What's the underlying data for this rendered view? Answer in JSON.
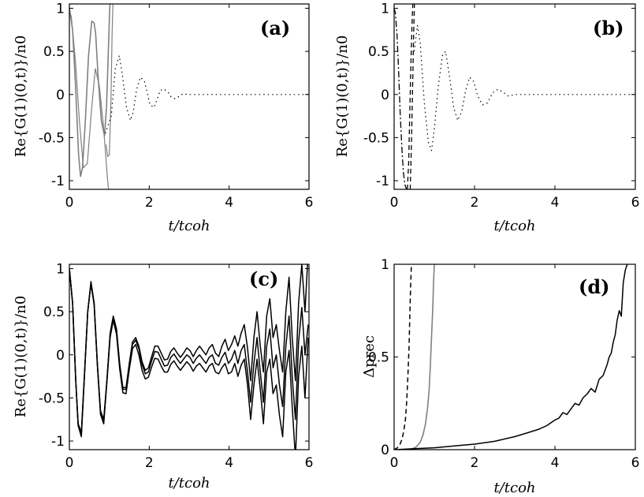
{
  "chart_data": [
    {
      "type": "line",
      "panel_label": "(a)",
      "ylabel": "Re{G(1)(0,t)}/n0",
      "xlabel": "t/tcoh",
      "xlim": [
        0,
        6
      ],
      "ylim": [
        -1.1,
        1.05
      ],
      "xticks": [
        "0",
        "2",
        "4",
        "6"
      ],
      "yticks": [
        "1",
        "0.5",
        "0",
        "-0.5",
        "-1"
      ],
      "series": [
        {
          "color": "#808080",
          "width": 1.6,
          "dash": "",
          "x": [
            0.0,
            0.08,
            0.16,
            0.23,
            0.28,
            0.33,
            0.4,
            0.48,
            0.56,
            0.62,
            0.66,
            0.72,
            0.8,
            0.88,
            0.93,
            0.97,
            1.01,
            1.04,
            1.07
          ],
          "y": [
            1.0,
            0.75,
            0.05,
            -0.7,
            -0.95,
            -0.85,
            -0.3,
            0.45,
            0.85,
            0.83,
            0.7,
            0.2,
            -0.3,
            -0.48,
            -0.15,
            0.4,
            1.0,
            1.2,
            1.3
          ]
        },
        {
          "color": "#808080",
          "width": 1.2,
          "dash": "",
          "x": [
            0.0,
            0.05,
            0.15,
            0.25,
            0.35,
            0.45,
            0.55,
            0.65,
            0.75,
            0.85,
            0.95,
            1.0
          ],
          "y": [
            0.98,
            0.9,
            0.4,
            -0.3,
            -0.85,
            -0.8,
            -0.2,
            0.3,
            0.1,
            -0.35,
            -0.95,
            -1.2
          ]
        },
        {
          "color": "#808080",
          "width": 1.2,
          "dash": "",
          "x": [
            0.92,
            0.96,
            1.0,
            1.04,
            1.07,
            1.1,
            1.13
          ],
          "y": [
            -0.58,
            -0.72,
            -0.7,
            -0.1,
            0.7,
            1.2,
            1.3
          ]
        },
        {
          "color": "#000000",
          "width": 1.2,
          "dash": "1.5,4",
          "x": [
            0.9,
            1.05,
            1.15,
            1.25,
            1.32,
            1.43,
            1.53,
            1.6,
            1.68,
            1.78,
            1.88,
            1.95,
            2.02,
            2.12,
            2.2,
            2.28,
            2.38,
            2.48,
            2.55,
            2.65,
            2.75,
            2.85,
            2.95,
            3.1,
            3.4,
            4.0,
            5.0,
            6.0
          ],
          "y": [
            -0.45,
            -0.25,
            0.3,
            0.45,
            0.25,
            -0.15,
            -0.3,
            -0.2,
            0.05,
            0.2,
            0.15,
            0.02,
            -0.12,
            -0.15,
            -0.05,
            0.05,
            0.06,
            0.02,
            -0.03,
            -0.05,
            -0.02,
            0.01,
            0.0,
            0.0,
            0.0,
            0.0,
            0.0,
            0.0
          ]
        }
      ]
    },
    {
      "type": "line",
      "panel_label": "(b)",
      "ylabel": "Re{G(1)(0,t)}/n0",
      "xlabel": "t/tcoh",
      "xlim": [
        0,
        6
      ],
      "ylim": [
        -1.1,
        1.05
      ],
      "xticks": [
        "0",
        "2",
        "4",
        "6"
      ],
      "yticks": [
        "1",
        "0.5",
        "0",
        "-0.5",
        "-1"
      ],
      "series": [
        {
          "color": "#000000",
          "width": 1.3,
          "dash": "8,3,2,3",
          "x": [
            0.0,
            0.03,
            0.07,
            0.11,
            0.15,
            0.19,
            0.23,
            0.27,
            0.31,
            0.35
          ],
          "y": [
            1.0,
            0.95,
            0.7,
            0.3,
            -0.2,
            -0.6,
            -0.9,
            -1.05,
            -1.1,
            -1.2
          ]
        },
        {
          "color": "#000000",
          "width": 1.3,
          "dash": "6,4",
          "x": [
            0.33,
            0.36,
            0.39,
            0.42,
            0.45,
            0.48,
            0.51
          ],
          "y": [
            -1.1,
            -0.8,
            -0.2,
            0.4,
            0.9,
            1.2,
            1.3
          ]
        },
        {
          "color": "#000000",
          "width": 1.3,
          "dash": "6,4",
          "x": [
            0.4,
            0.43,
            0.46,
            0.49,
            0.52
          ],
          "y": [
            -1.1,
            -0.6,
            0.1,
            0.8,
            1.3
          ]
        },
        {
          "color": "#000000",
          "width": 1.2,
          "dash": "1.5,4",
          "x": [
            0.5,
            0.58,
            0.65,
            0.75,
            0.85,
            0.93,
            1.0,
            1.1,
            1.2,
            1.28,
            1.38,
            1.48,
            1.58,
            1.68,
            1.78,
            1.88,
            1.98,
            2.08,
            2.2,
            2.32,
            2.45,
            2.58,
            2.7,
            2.85,
            3.0,
            3.5,
            4.0,
            5.0,
            6.0
          ],
          "y": [
            0.5,
            0.8,
            0.6,
            -0.1,
            -0.55,
            -0.65,
            -0.4,
            0.1,
            0.45,
            0.5,
            0.2,
            -0.15,
            -0.3,
            -0.2,
            0.05,
            0.2,
            0.15,
            -0.02,
            -0.12,
            -0.1,
            0.02,
            0.06,
            0.03,
            -0.02,
            0.0,
            0.0,
            0.0,
            0.0,
            0.0
          ]
        }
      ]
    },
    {
      "type": "line",
      "panel_label": "(c)",
      "ylabel": "Re{G(1)(0,t)}/n0",
      "xlabel": "t/tcoh",
      "xlim": [
        0,
        6
      ],
      "ylim": [
        -1.1,
        1.05
      ],
      "xticks": [
        "0",
        "2",
        "4",
        "6"
      ],
      "yticks": [
        "1",
        "0.5",
        "0",
        "-0.5",
        "-1"
      ],
      "series": [
        {
          "color": "#000000",
          "width": 1.5,
          "dash": "",
          "x": [
            0.0,
            0.08,
            0.16,
            0.22,
            0.3,
            0.38,
            0.46,
            0.54,
            0.62,
            0.7,
            0.78,
            0.86,
            0.94,
            1.02,
            1.1,
            1.18,
            1.26,
            1.34,
            1.42,
            1.5,
            1.58,
            1.66,
            1.74,
            1.82,
            1.9,
            1.98,
            2.06,
            2.14,
            2.22,
            2.3,
            2.38,
            2.46,
            2.54,
            2.62,
            2.7,
            2.78,
            2.86,
            2.94,
            3.02,
            3.1,
            3.18,
            3.26,
            3.34,
            3.42,
            3.5,
            3.58,
            3.66,
            3.74,
            3.82,
            3.9,
            3.98,
            4.06,
            4.14,
            4.22,
            4.3,
            4.38,
            4.46,
            4.54,
            4.62,
            4.7,
            4.78,
            4.86,
            4.94,
            5.02,
            5.1,
            5.18,
            5.26,
            5.34,
            5.42,
            5.5,
            5.58,
            5.66,
            5.74,
            5.82,
            5.9,
            5.98
          ],
          "y": [
            1.0,
            0.6,
            -0.3,
            -0.8,
            -0.9,
            -0.2,
            0.5,
            0.85,
            0.6,
            -0.1,
            -0.65,
            -0.75,
            -0.3,
            0.25,
            0.45,
            0.3,
            -0.1,
            -0.38,
            -0.38,
            -0.1,
            0.15,
            0.2,
            0.1,
            -0.08,
            -0.18,
            -0.15,
            -0.02,
            0.1,
            0.1,
            0.02,
            -0.06,
            -0.05,
            0.04,
            0.08,
            0.02,
            -0.03,
            0.02,
            0.08,
            0.05,
            -0.02,
            0.05,
            0.1,
            0.05,
            0.0,
            0.08,
            0.12,
            0.02,
            -0.02,
            0.1,
            0.18,
            0.05,
            0.12,
            0.22,
            0.1,
            0.25,
            0.35,
            0.08,
            -0.3,
            0.2,
            0.5,
            0.1,
            -0.2,
            0.45,
            0.65,
            0.2,
            0.35,
            0.05,
            -0.2,
            0.5,
            0.9,
            0.2,
            -0.3,
            0.6,
            1.05,
            0.5,
            1.2
          ]
        },
        {
          "color": "#000000",
          "width": 1.5,
          "dash": "",
          "x": [
            0.0,
            0.08,
            0.16,
            0.22,
            0.3,
            0.38,
            0.46,
            0.54,
            0.62,
            0.7,
            0.78,
            0.86,
            0.94,
            1.02,
            1.1,
            1.18,
            1.26,
            1.34,
            1.42,
            1.5,
            1.58,
            1.66,
            1.74,
            1.82,
            1.9,
            1.98,
            2.06,
            2.14,
            2.22,
            2.3,
            2.38,
            2.46,
            2.54,
            2.62,
            2.7,
            2.78,
            2.86,
            2.94,
            3.02,
            3.1,
            3.18,
            3.26,
            3.34,
            3.42,
            3.5,
            3.58,
            3.66,
            3.74,
            3.82,
            3.9,
            3.98,
            4.06,
            4.14,
            4.22,
            4.3,
            4.38,
            4.46,
            4.54,
            4.62,
            4.7,
            4.78,
            4.86,
            4.94,
            5.02,
            5.1,
            5.18,
            5.26,
            5.34,
            5.42,
            5.5,
            5.58,
            5.66,
            5.74,
            5.82,
            5.9,
            5.98
          ],
          "y": [
            1.0,
            0.6,
            -0.3,
            -0.8,
            -0.92,
            -0.2,
            0.5,
            0.83,
            0.6,
            -0.1,
            -0.67,
            -0.77,
            -0.3,
            0.23,
            0.43,
            0.28,
            -0.12,
            -0.4,
            -0.4,
            -0.12,
            0.12,
            0.17,
            0.07,
            -0.11,
            -0.22,
            -0.2,
            -0.07,
            0.04,
            0.03,
            -0.05,
            -0.13,
            -0.12,
            -0.03,
            0.01,
            -0.05,
            -0.1,
            -0.05,
            0.0,
            -0.03,
            -0.1,
            -0.04,
            0.0,
            -0.05,
            -0.1,
            -0.03,
            0.0,
            -0.1,
            -0.12,
            -0.03,
            0.03,
            -0.1,
            -0.05,
            0.05,
            -0.1,
            0.05,
            0.12,
            -0.2,
            -0.55,
            -0.1,
            0.2,
            -0.2,
            -0.55,
            0.1,
            0.3,
            -0.15,
            0.0,
            -0.35,
            -0.6,
            0.1,
            0.45,
            -0.25,
            -0.75,
            0.15,
            0.55,
            0.0,
            0.35
          ]
        },
        {
          "color": "#000000",
          "width": 1.5,
          "dash": "",
          "x": [
            0.0,
            0.08,
            0.16,
            0.22,
            0.3,
            0.38,
            0.46,
            0.54,
            0.62,
            0.7,
            0.78,
            0.86,
            0.94,
            1.02,
            1.1,
            1.18,
            1.26,
            1.34,
            1.42,
            1.5,
            1.58,
            1.66,
            1.74,
            1.82,
            1.9,
            1.98,
            2.06,
            2.14,
            2.22,
            2.3,
            2.38,
            2.46,
            2.54,
            2.62,
            2.7,
            2.78,
            2.86,
            2.94,
            3.02,
            3.1,
            3.18,
            3.26,
            3.34,
            3.42,
            3.5,
            3.58,
            3.66,
            3.74,
            3.82,
            3.9,
            3.98,
            4.06,
            4.14,
            4.22,
            4.3,
            4.38,
            4.46,
            4.54,
            4.62,
            4.7,
            4.78,
            4.86,
            4.94,
            5.02,
            5.1,
            5.18,
            5.26,
            5.34,
            5.42,
            5.5,
            5.58,
            5.66,
            5.74,
            5.82,
            5.9,
            5.98
          ],
          "y": [
            1.0,
            0.6,
            -0.3,
            -0.82,
            -0.95,
            -0.22,
            0.5,
            0.82,
            0.58,
            -0.12,
            -0.69,
            -0.8,
            -0.32,
            0.2,
            0.4,
            0.24,
            -0.16,
            -0.44,
            -0.45,
            -0.17,
            0.07,
            0.12,
            0.0,
            -0.18,
            -0.28,
            -0.26,
            -0.14,
            -0.04,
            -0.05,
            -0.13,
            -0.2,
            -0.2,
            -0.11,
            -0.07,
            -0.13,
            -0.18,
            -0.13,
            -0.08,
            -0.12,
            -0.19,
            -0.13,
            -0.1,
            -0.15,
            -0.2,
            -0.13,
            -0.1,
            -0.2,
            -0.22,
            -0.15,
            -0.1,
            -0.22,
            -0.2,
            -0.1,
            -0.25,
            -0.12,
            -0.05,
            -0.35,
            -0.75,
            -0.35,
            -0.05,
            -0.4,
            -0.8,
            -0.2,
            -0.05,
            -0.45,
            -0.35,
            -0.7,
            -0.95,
            -0.2,
            0.05,
            -0.6,
            -1.2,
            -0.25,
            0.1,
            -0.5,
            0.2
          ]
        }
      ]
    },
    {
      "type": "line",
      "panel_label": "(d)",
      "ylabel": "Δprec",
      "xlabel": "t/tcoh",
      "xlim": [
        0,
        6
      ],
      "ylim": [
        0,
        1
      ],
      "xticks": [
        "0",
        "2",
        "4",
        "6"
      ],
      "yticks": [
        "1",
        "0.5",
        "0"
      ],
      "series": [
        {
          "color": "#000000",
          "width": 1.5,
          "dash": "6,4",
          "x": [
            0.0,
            0.08,
            0.15,
            0.2,
            0.24,
            0.28,
            0.31,
            0.34,
            0.37,
            0.39,
            0.41,
            0.43
          ],
          "y": [
            0.0,
            0.01,
            0.03,
            0.06,
            0.1,
            0.16,
            0.25,
            0.38,
            0.55,
            0.72,
            0.88,
            1.0
          ]
        },
        {
          "color": "#808080",
          "width": 1.6,
          "dash": "",
          "x": [
            0.3,
            0.45,
            0.55,
            0.65,
            0.72,
            0.78,
            0.83,
            0.87,
            0.9,
            0.93,
            0.96,
            0.98,
            1.0
          ],
          "y": [
            0.0,
            0.005,
            0.015,
            0.04,
            0.08,
            0.14,
            0.22,
            0.32,
            0.45,
            0.6,
            0.76,
            0.9,
            1.0
          ]
        },
        {
          "color": "#000000",
          "width": 1.5,
          "dash": "",
          "x": [
            0.0,
            0.5,
            1.0,
            1.5,
            2.0,
            2.5,
            3.0,
            3.3,
            3.6,
            3.8,
            4.0,
            4.1,
            4.2,
            4.3,
            4.4,
            4.5,
            4.6,
            4.7,
            4.8,
            4.9,
            5.0,
            5.1,
            5.2,
            5.3,
            5.35,
            5.4,
            5.45,
            5.5,
            5.55,
            5.6,
            5.65,
            5.7,
            5.75,
            5.8
          ],
          "y": [
            0.0,
            0.005,
            0.01,
            0.02,
            0.03,
            0.045,
            0.07,
            0.09,
            0.11,
            0.13,
            0.16,
            0.17,
            0.2,
            0.19,
            0.22,
            0.25,
            0.24,
            0.28,
            0.3,
            0.33,
            0.31,
            0.38,
            0.4,
            0.46,
            0.5,
            0.52,
            0.58,
            0.62,
            0.7,
            0.75,
            0.72,
            0.9,
            0.97,
            1.0
          ]
        }
      ]
    }
  ]
}
